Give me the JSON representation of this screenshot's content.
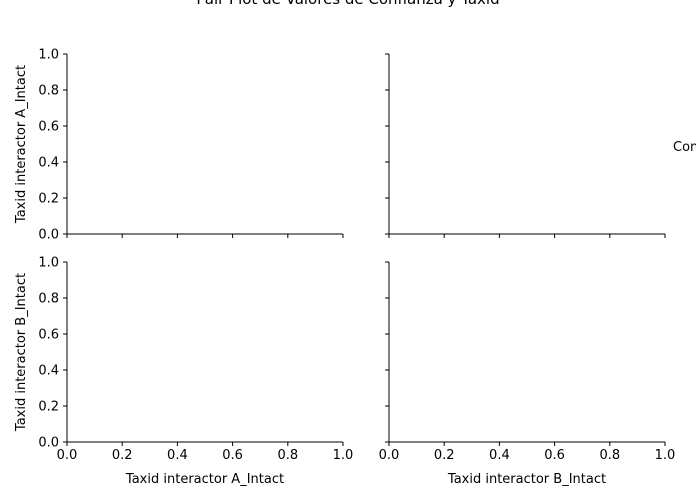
{
  "chart_data": {
    "type": "scatter",
    "title": "Pair Plot de Valores de Confianza y Taxid",
    "legend_title": "Con",
    "legend_placement": "right-center",
    "grid": false,
    "variables": [
      "Taxid interactor A_Intact",
      "Taxid interactor B_Intact"
    ],
    "series": [],
    "xlim": [
      0.0,
      1.0
    ],
    "ylim": [
      0.0,
      1.0
    ],
    "x_ticks": [
      "0.0",
      "0.2",
      "0.4",
      "0.6",
      "0.8",
      "1.0"
    ],
    "y_ticks": [
      "0.0",
      "0.2",
      "0.4",
      "0.6",
      "0.8",
      "1.0"
    ],
    "panels": [
      {
        "row": 0,
        "col": 0,
        "xlabel": "",
        "ylabel": "Taxid interactor A_Intact",
        "show_x_ticklabels": false,
        "show_y_ticklabels": true
      },
      {
        "row": 0,
        "col": 1,
        "xlabel": "",
        "ylabel": "",
        "show_x_ticklabels": false,
        "show_y_ticklabels": false
      },
      {
        "row": 1,
        "col": 0,
        "xlabel": "Taxid interactor A_Intact",
        "ylabel": "Taxid interactor B_Intact",
        "show_x_ticklabels": true,
        "show_y_ticklabels": true
      },
      {
        "row": 1,
        "col": 1,
        "xlabel": "Taxid interactor B_Intact",
        "ylabel": "",
        "show_x_ticklabels": true,
        "show_y_ticklabels": false
      }
    ]
  }
}
